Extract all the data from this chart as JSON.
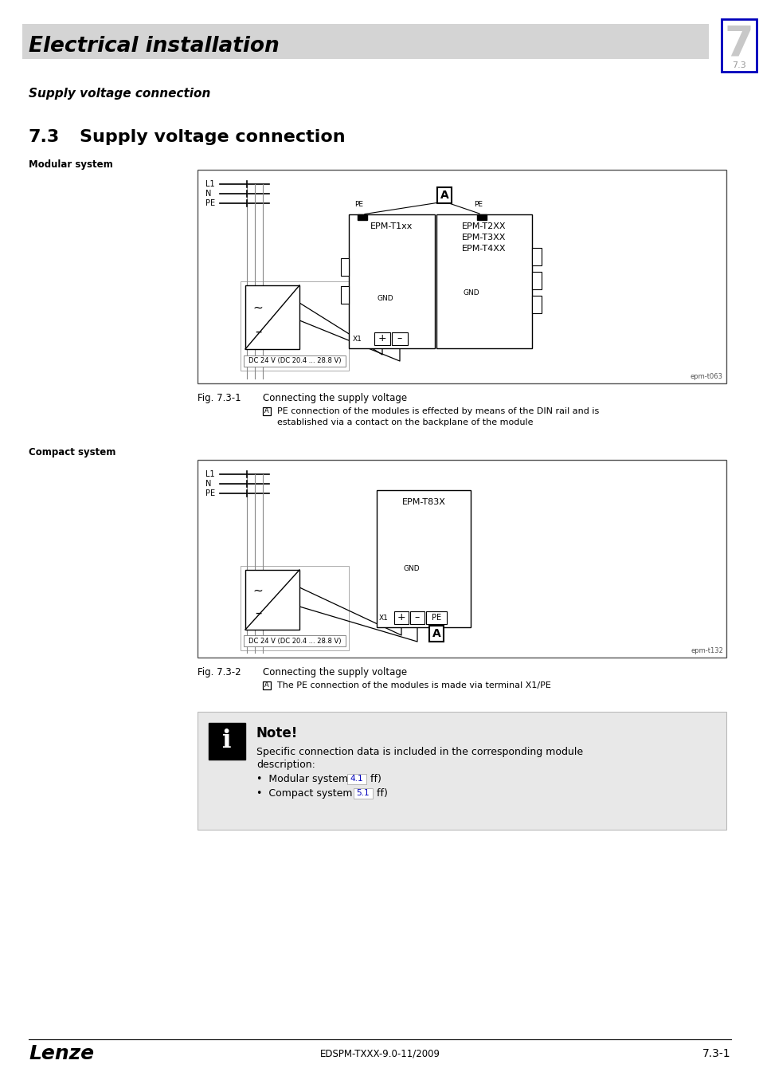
{
  "page_title": "Electrical installation",
  "page_subtitle": "Supply voltage connection",
  "chapter_num": "7",
  "chapter_sub": "7.3",
  "section_num": "7.3",
  "section_title": "Supply voltage connection",
  "section_label1": "Modular system",
  "section_label2": "Compact system",
  "fig1_label": "Fig. 7.3-1",
  "fig1_caption": "Connecting the supply voltage",
  "fig1_noteA_line1": "PE connection of the modules is effected by means of the DIN rail and is",
  "fig1_noteA_line2": "established via a contact on the backplane of the module",
  "fig2_label": "Fig. 7.3-2",
  "fig2_caption": "Connecting the supply voltage",
  "fig2_noteA": "The PE connection of the modules is made via terminal X1/PE",
  "note_title": "Note!",
  "note_line1": "Specific connection data is included in the corresponding module",
  "note_line2": "description:",
  "note_bullet1a": "Modular system (",
  "note_bullet1b": "4.1",
  "note_bullet1c": " ff)",
  "note_bullet2a": "Compact system (",
  "note_bullet2b": "5.1",
  "note_bullet2c": " ff)",
  "footer_left": "Lenze",
  "footer_center": "EDSPM-TXXX-9.0-11/2009",
  "footer_right": "7.3-1",
  "bg_color": "#ffffff",
  "header_bg": "#d4d4d4",
  "note_bg": "#e8e8e8",
  "blue_color": "#0000bb",
  "epm1_label": "epm-t063",
  "epm2_label": "epm-t132"
}
